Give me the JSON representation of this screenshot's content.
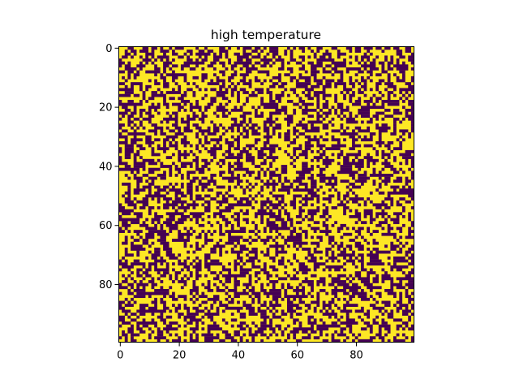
{
  "chart_data": {
    "type": "heatmap",
    "title": "high temperature",
    "xlabel": "",
    "ylabel": "",
    "grid_size": [
      100,
      100
    ],
    "xlim": [
      -0.5,
      99.5
    ],
    "ylim": [
      99.5,
      -0.5
    ],
    "x_ticks": [
      0,
      20,
      40,
      60,
      80
    ],
    "y_ticks": [
      0,
      20,
      40,
      60,
      80
    ],
    "grid": false,
    "legend": "none",
    "colormap": "viridis",
    "values_domain": [
      -1,
      1
    ],
    "spin_up_fraction": 0.55,
    "random_seed": 12345,
    "colors": {
      "spin_up": "#fde725",
      "spin_down": "#440154",
      "axis": "#000000",
      "background": "#ffffff"
    }
  }
}
